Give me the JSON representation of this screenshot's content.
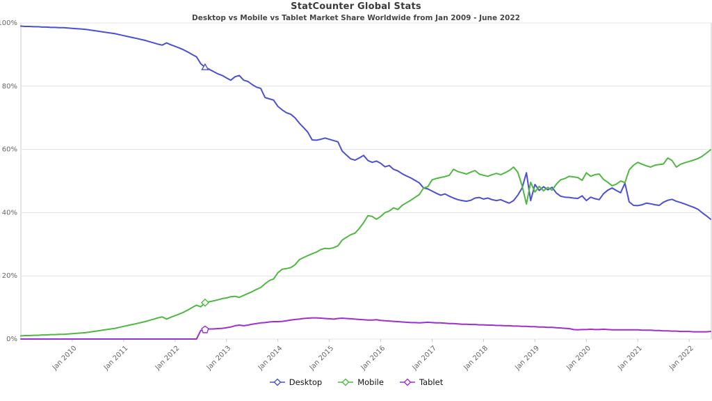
{
  "chart_data": {
    "type": "line",
    "title": "StatCounter Global Stats",
    "subtitle": "Desktop vs Mobile vs Tablet Market Share Worldwide from Jan 2009 - June 2022",
    "x_start": "Jan 2009",
    "x_end": "June 2022",
    "x_step": "month",
    "x_tick_labels": [
      "Jan 2010",
      "Jan 2011",
      "Jan 2012",
      "Jan 2013",
      "Jan 2014",
      "Jan 2015",
      "Jan 2016",
      "Jan 2017",
      "Jan 2018",
      "Jan 2019",
      "Jan 2020",
      "Jan 2021",
      "Jan 2022"
    ],
    "y_tick_labels": [
      "0%",
      "20%",
      "40%",
      "60%",
      "80%",
      "100%"
    ],
    "ylim": [
      0,
      100
    ],
    "grid": true,
    "legend_position": "bottom",
    "highlight": {
      "month_index": 43,
      "month": "Aug 2012"
    },
    "colors": {
      "grid": "#e4e4e4",
      "frame": "#c9c9c9",
      "axis_text": "#666666",
      "title_text": "#3a3a3a"
    },
    "series": [
      {
        "name": "Desktop",
        "color": "#4a4fd4",
        "marker_shape": "triangle",
        "values": [
          99.0,
          98.9,
          98.9,
          98.8,
          98.8,
          98.7,
          98.7,
          98.6,
          98.6,
          98.5,
          98.5,
          98.4,
          98.3,
          98.2,
          98.1,
          98.0,
          97.8,
          97.6,
          97.4,
          97.2,
          97.0,
          96.8,
          96.6,
          96.3,
          96.0,
          95.7,
          95.4,
          95.1,
          94.8,
          94.5,
          94.1,
          93.7,
          93.3,
          93.0,
          93.7,
          93.1,
          92.6,
          92.1,
          91.5,
          90.8,
          90.0,
          89.3,
          87.1,
          86.0,
          85.3,
          84.6,
          83.9,
          83.4,
          82.6,
          81.9,
          83.0,
          83.4,
          81.9,
          81.5,
          80.5,
          79.7,
          79.3,
          76.4,
          76.0,
          75.6,
          73.6,
          72.5,
          71.6,
          71.1,
          70.0,
          68.3,
          66.9,
          65.4,
          63.0,
          62.9,
          63.2,
          63.6,
          63.2,
          62.8,
          62.4,
          59.5,
          58.2,
          57.0,
          56.6,
          57.3,
          58.1,
          56.5,
          55.9,
          56.3,
          55.6,
          54.5,
          54.9,
          53.7,
          53.2,
          52.3,
          51.6,
          51.0,
          50.2,
          49.4,
          47.8,
          47.5,
          46.8,
          46.1,
          45.5,
          45.9,
          45.2,
          44.6,
          44.1,
          43.8,
          43.6,
          43.9,
          44.6,
          44.8,
          44.3,
          44.6,
          44.1,
          43.8,
          44.1,
          43.5,
          43.0,
          43.8,
          45.5,
          47.8,
          52.6,
          43.8,
          48.9,
          47.0,
          48.2,
          47.2,
          48.0,
          46.2,
          45.2,
          44.9,
          44.8,
          44.6,
          44.5,
          45.3,
          43.8,
          44.9,
          44.4,
          44.1,
          46.0,
          47.1,
          47.8,
          47.0,
          46.3,
          49.3,
          43.4,
          42.3,
          42.2,
          42.5,
          43.0,
          42.8,
          42.5,
          42.3,
          43.3,
          43.9,
          44.2,
          43.6,
          43.2,
          42.7,
          42.2,
          41.7,
          41.1,
          40.0,
          39.0,
          37.9
        ]
      },
      {
        "name": "Mobile",
        "color": "#4eb840",
        "marker_shape": "diamond",
        "values": [
          1.0,
          1.1,
          1.1,
          1.2,
          1.2,
          1.3,
          1.3,
          1.4,
          1.4,
          1.5,
          1.5,
          1.6,
          1.7,
          1.8,
          1.9,
          2.0,
          2.2,
          2.4,
          2.6,
          2.8,
          3.0,
          3.2,
          3.4,
          3.7,
          4.0,
          4.3,
          4.6,
          4.9,
          5.2,
          5.5,
          5.9,
          6.3,
          6.7,
          7.0,
          6.3,
          6.9,
          7.4,
          7.9,
          8.5,
          9.2,
          10.0,
          10.7,
          10.2,
          11.5,
          11.8,
          12.1,
          12.4,
          12.8,
          13.0,
          13.4,
          13.5,
          13.2,
          13.8,
          14.4,
          15.0,
          15.7,
          16.3,
          17.5,
          18.5,
          19.0,
          21.0,
          22.1,
          22.3,
          22.6,
          23.5,
          25.1,
          25.8,
          26.4,
          27.0,
          27.5,
          28.3,
          28.7,
          28.6,
          28.9,
          29.5,
          31.3,
          32.2,
          33.0,
          33.5,
          35.0,
          36.8,
          39.0,
          38.8,
          37.9,
          38.8,
          40.0,
          40.5,
          41.5,
          41.0,
          42.3,
          43.1,
          43.9,
          44.8,
          45.7,
          47.8,
          48.2,
          50.4,
          50.8,
          51.1,
          51.4,
          51.8,
          53.7,
          53.0,
          52.6,
          52.2,
          52.8,
          53.3,
          52.2,
          51.8,
          51.5,
          52.0,
          52.4,
          52.0,
          52.6,
          53.3,
          54.4,
          52.8,
          48.5,
          42.7,
          49.6,
          46.5,
          48.3,
          46.9,
          48.0,
          47.1,
          49.0,
          50.4,
          50.8,
          51.5,
          51.3,
          51.1,
          50.2,
          52.6,
          51.5,
          52.0,
          52.2,
          50.5,
          49.6,
          48.5,
          49.0,
          50.0,
          49.5,
          53.5,
          55.0,
          55.9,
          55.3,
          54.8,
          54.4,
          55.0,
          55.2,
          55.4,
          57.3,
          56.5,
          54.4,
          55.3,
          55.8,
          56.2,
          56.6,
          57.1,
          57.8,
          58.8,
          59.9
        ]
      },
      {
        "name": "Tablet",
        "color": "#9c2fd1",
        "marker_shape": "pentagon",
        "values": [
          0,
          0,
          0,
          0,
          0,
          0,
          0,
          0,
          0,
          0,
          0,
          0,
          0,
          0,
          0,
          0,
          0,
          0,
          0,
          0,
          0,
          0,
          0,
          0,
          0,
          0,
          0,
          0,
          0,
          0,
          0,
          0,
          0,
          0,
          0,
          0,
          0,
          0,
          0,
          0,
          0,
          0,
          2.7,
          3.0,
          3.2,
          3.2,
          3.3,
          3.4,
          3.6,
          3.8,
          4.2,
          4.4,
          4.2,
          4.4,
          4.7,
          4.9,
          5.1,
          5.2,
          5.4,
          5.5,
          5.5,
          5.6,
          5.8,
          6.0,
          6.2,
          6.3,
          6.5,
          6.6,
          6.7,
          6.7,
          6.6,
          6.5,
          6.4,
          6.3,
          6.5,
          6.6,
          6.5,
          6.4,
          6.3,
          6.2,
          6.1,
          6.0,
          6.0,
          6.1,
          5.9,
          5.8,
          5.7,
          5.6,
          5.5,
          5.4,
          5.3,
          5.2,
          5.2,
          5.1,
          5.2,
          5.3,
          5.2,
          5.1,
          5.1,
          5.0,
          4.9,
          4.9,
          4.8,
          4.7,
          4.7,
          4.6,
          4.6,
          4.5,
          4.5,
          4.4,
          4.4,
          4.3,
          4.3,
          4.2,
          4.2,
          4.1,
          4.1,
          4.0,
          4.0,
          3.9,
          3.9,
          3.8,
          3.8,
          3.7,
          3.7,
          3.6,
          3.5,
          3.4,
          3.3,
          3.0,
          2.9,
          3.0,
          3.0,
          3.1,
          3.0,
          3.0,
          3.1,
          3.0,
          2.9,
          2.9,
          2.9,
          2.9,
          2.9,
          2.9,
          2.9,
          2.8,
          2.8,
          2.8,
          2.7,
          2.7,
          2.6,
          2.6,
          2.5,
          2.5,
          2.4,
          2.4,
          2.4,
          2.3,
          2.3,
          2.3,
          2.3,
          2.4
        ]
      }
    ]
  }
}
